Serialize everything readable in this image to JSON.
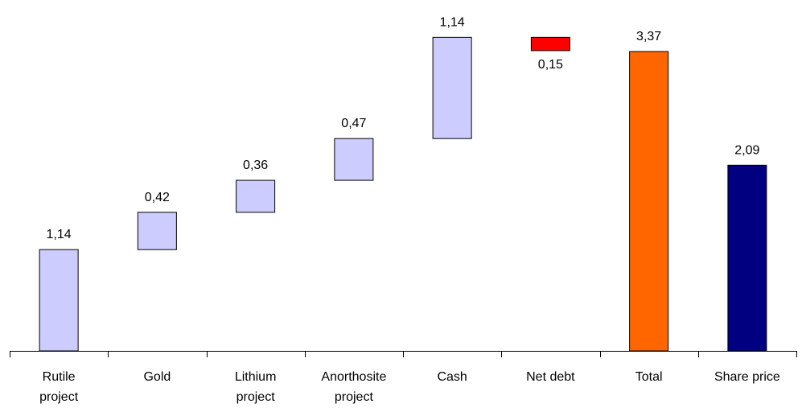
{
  "chart_data": {
    "type": "waterfall",
    "categories": [
      "Rutile\nproject",
      "Gold",
      "Lithium\nproject",
      "Anorthosite\nproject",
      "Cash",
      "Net debt",
      "Total",
      "Share price"
    ],
    "values": [
      1.14,
      0.42,
      0.36,
      0.47,
      1.14,
      -0.15,
      3.37,
      2.09
    ],
    "value_labels": [
      "1,14",
      "0,42",
      "0,36",
      "0,47",
      "1,14",
      "0,15",
      "3,37",
      "2,09"
    ],
    "measures": [
      "relative",
      "relative",
      "relative",
      "relative",
      "relative",
      "relative",
      "total",
      "absolute"
    ],
    "colors": [
      "#ccccff",
      "#ccccff",
      "#ccccff",
      "#ccccff",
      "#ccccff",
      "#ff0000",
      "#ff6600",
      "#000080"
    ],
    "ylim": [
      0,
      3.95
    ]
  }
}
